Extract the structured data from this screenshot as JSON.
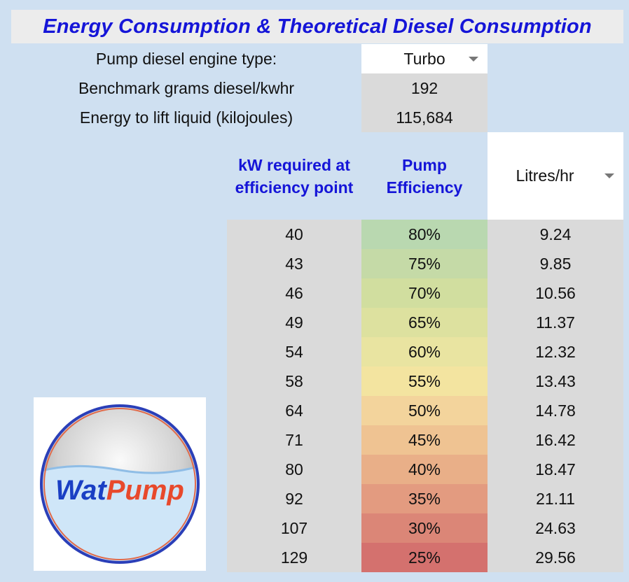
{
  "title": "Energy Consumption & Theoretical Diesel Consumption",
  "params": [
    {
      "label": "Pump diesel engine type:",
      "value": "Turbo"
    },
    {
      "label": "Benchmark grams diesel/kwhr",
      "value": "192"
    },
    {
      "label": "Energy to lift liquid (kilojoules)",
      "value": "115,684"
    }
  ],
  "columns": {
    "kw": "kW required at efficiency point",
    "efficiency": "Pump Efficiency",
    "unit_selected": "Litres/hr"
  },
  "rows": [
    {
      "kw": "40",
      "efficiency": "80%",
      "consumption": "9.24",
      "color": "#b9d8b0"
    },
    {
      "kw": "43",
      "efficiency": "75%",
      "consumption": "9.85",
      "color": "#c5daa7"
    },
    {
      "kw": "46",
      "efficiency": "70%",
      "consumption": "10.56",
      "color": "#d1de9f"
    },
    {
      "kw": "49",
      "efficiency": "65%",
      "consumption": "11.37",
      "color": "#dde19f"
    },
    {
      "kw": "54",
      "efficiency": "60%",
      "consumption": "12.32",
      "color": "#e9e4a1"
    },
    {
      "kw": "58",
      "efficiency": "55%",
      "consumption": "13.43",
      "color": "#f3e4a0"
    },
    {
      "kw": "64",
      "efficiency": "50%",
      "consumption": "14.78",
      "color": "#f3d49c"
    },
    {
      "kw": "71",
      "efficiency": "45%",
      "consumption": "16.42",
      "color": "#efc392"
    },
    {
      "kw": "80",
      "efficiency": "40%",
      "consumption": "18.47",
      "color": "#e9af88"
    },
    {
      "kw": "92",
      "efficiency": "35%",
      "consumption": "21.11",
      "color": "#e39b80"
    },
    {
      "kw": "107",
      "efficiency": "30%",
      "consumption": "24.63",
      "color": "#db8677"
    },
    {
      "kw": "129",
      "efficiency": "25%",
      "consumption": "29.56",
      "color": "#d4716e"
    }
  ],
  "logo": {
    "part1": "Wat",
    "part2": "Pump",
    "color1": "#1a3fc4",
    "color2": "#e8492c"
  },
  "colors": {
    "accent": "#1515d8",
    "background": "#cfe0f1"
  }
}
